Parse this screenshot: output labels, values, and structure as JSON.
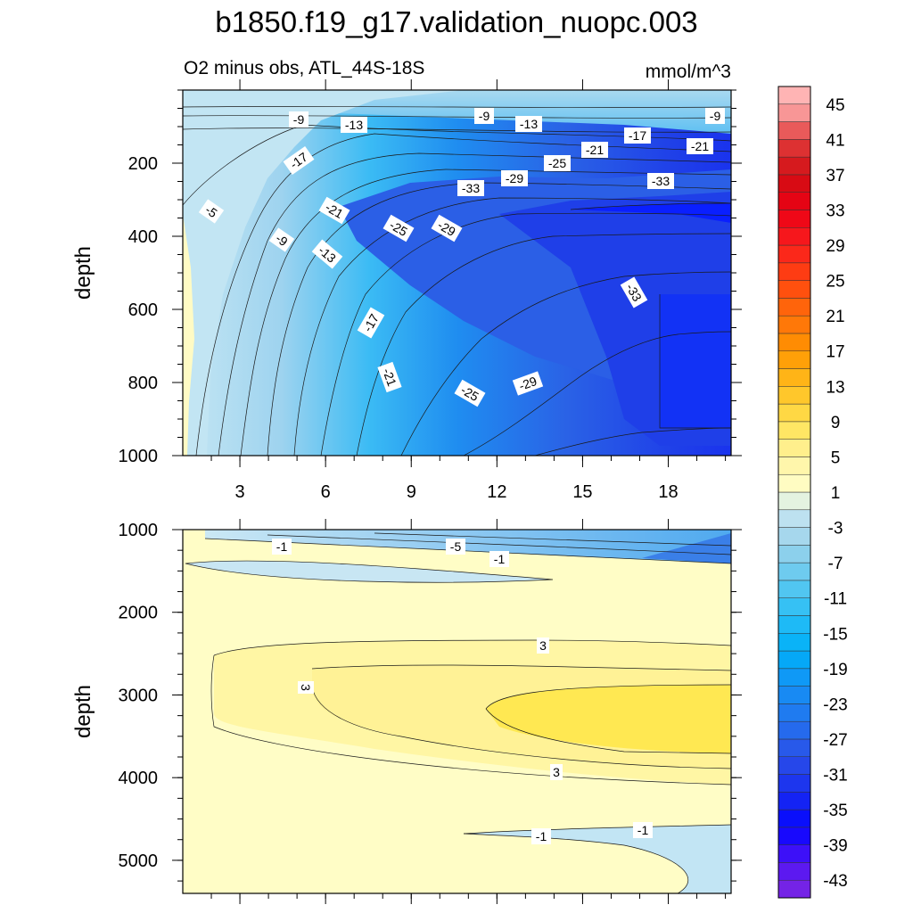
{
  "title": "b1850.f19_g17.validation_nuopc.003",
  "chart_data": {
    "type": "heatmap",
    "subtitle_left": "O2 minus obs, ATL_44S-18S",
    "subtitle_right": "mmol/m^3",
    "xlabel": "",
    "ylabel": "depth",
    "x_ticks": [
      "3",
      "6",
      "9",
      "12",
      "15",
      "18"
    ],
    "colorbar": {
      "levels": [
        -45,
        -43,
        -41,
        -39,
        -37,
        -35,
        -33,
        -31,
        -29,
        -27,
        -25,
        -23,
        -21,
        -19,
        -17,
        -15,
        -13,
        -11,
        -9,
        -7,
        -5,
        -3,
        -1,
        1,
        3,
        5,
        7,
        9,
        11,
        13,
        15,
        17,
        19,
        21,
        23,
        25,
        27,
        29,
        31,
        33,
        35,
        37,
        39,
        41,
        43,
        45,
        47
      ],
      "labels": [
        "45",
        "41",
        "37",
        "33",
        "29",
        "25",
        "21",
        "17",
        "13",
        "9",
        "5",
        "1",
        "-3",
        "-7",
        "-11",
        "-15",
        "-19",
        "-23",
        "-27",
        "-31",
        "-35",
        "-39",
        "-43"
      ]
    },
    "panels": [
      {
        "name": "upper-ocean",
        "ylim": [
          1000,
          0
        ],
        "y_ticks": [
          "200",
          "400",
          "600",
          "800",
          "1000"
        ],
        "contour_labels": [
          "-9",
          "-13",
          "-9",
          "-13",
          "-9",
          "-17",
          "-21",
          "-17",
          "-25",
          "-21",
          "-29",
          "-33",
          "-33",
          "-5",
          "-21",
          "-25",
          "-29",
          "-9",
          "-13",
          "-33",
          "-17",
          "-21",
          "-25",
          "-29"
        ]
      },
      {
        "name": "deep-ocean",
        "ylim": [
          5400,
          1000
        ],
        "y_ticks": [
          "1000",
          "2000",
          "3000",
          "4000",
          "5000"
        ],
        "contour_labels": [
          "-1",
          "-5",
          "-1",
          "3",
          "3",
          "3",
          "-1",
          "-1"
        ]
      }
    ]
  }
}
